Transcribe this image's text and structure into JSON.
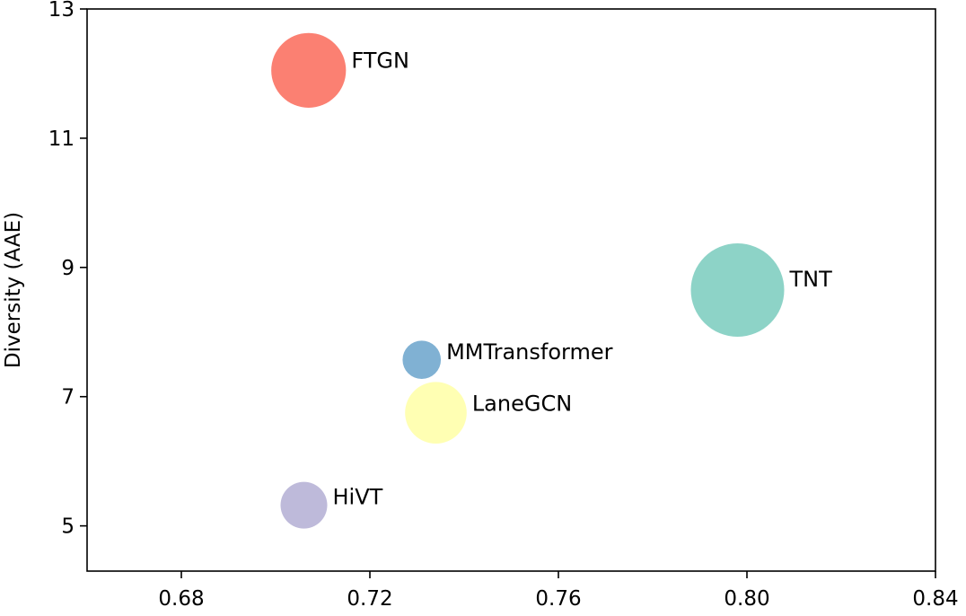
{
  "chart_data": {
    "type": "scatter",
    "title": "",
    "xlabel": "",
    "ylabel": "Diversity (AAE)",
    "xlim": [
      0.66,
      0.84
    ],
    "ylim": [
      4.3,
      13
    ],
    "grid": false,
    "legend": "none",
    "xticks": [
      0.68,
      0.72,
      0.76,
      0.8,
      0.84
    ],
    "xtick_labels": [
      "0.68",
      "0.72",
      "0.76",
      "0.80",
      "0.84"
    ],
    "yticks": [
      5,
      7,
      9,
      11,
      13
    ],
    "ytick_labels": [
      "5",
      "7",
      "9",
      "11",
      "13"
    ],
    "points": [
      {
        "name": "FTGN",
        "x": 0.707,
        "y": 12.05,
        "size": 0.8,
        "color": "#fb8072"
      },
      {
        "name": "TNT",
        "x": 0.798,
        "y": 8.65,
        "size": 1.0,
        "color": "#8dd3c7"
      },
      {
        "name": "MMTransformer",
        "x": 0.731,
        "y": 7.57,
        "size": 0.41,
        "color": "#80b1d3"
      },
      {
        "name": "LaneGCN",
        "x": 0.734,
        "y": 6.75,
        "size": 0.66,
        "color": "#ffffb3"
      },
      {
        "name": "HiVT",
        "x": 0.706,
        "y": 5.32,
        "size": 0.5,
        "color": "#bebada"
      }
    ]
  }
}
